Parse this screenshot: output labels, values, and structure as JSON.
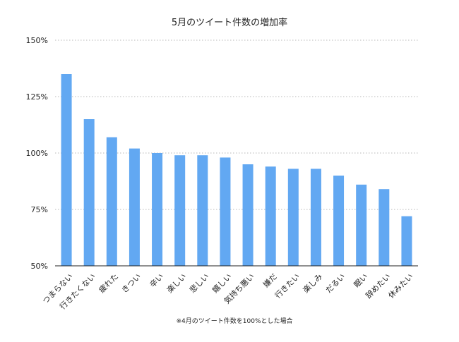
{
  "chart_data": {
    "type": "bar",
    "title": "5月のツイート件数の増加率",
    "note": "※4月のツイート件数を100%とした場合",
    "categories": [
      "つまらない",
      "行きたくない",
      "疲れた",
      "きつい",
      "辛い",
      "楽しい",
      "悲しい",
      "嬉しい",
      "気持ち悪い",
      "嫌だ",
      "行きたい",
      "楽しみ",
      "だるい",
      "眠い",
      "辞めたい",
      "休みたい"
    ],
    "values": [
      135,
      115,
      107,
      102,
      100,
      99,
      99,
      98,
      95,
      94,
      93,
      93,
      90,
      86,
      84,
      72
    ],
    "ylim": [
      50,
      150
    ],
    "yticks": [
      50,
      75,
      100,
      125,
      150
    ],
    "ytick_labels": [
      "50%",
      "75%",
      "100%",
      "125%",
      "150%"
    ],
    "bar_color": "#62a8f2",
    "grid": true
  }
}
